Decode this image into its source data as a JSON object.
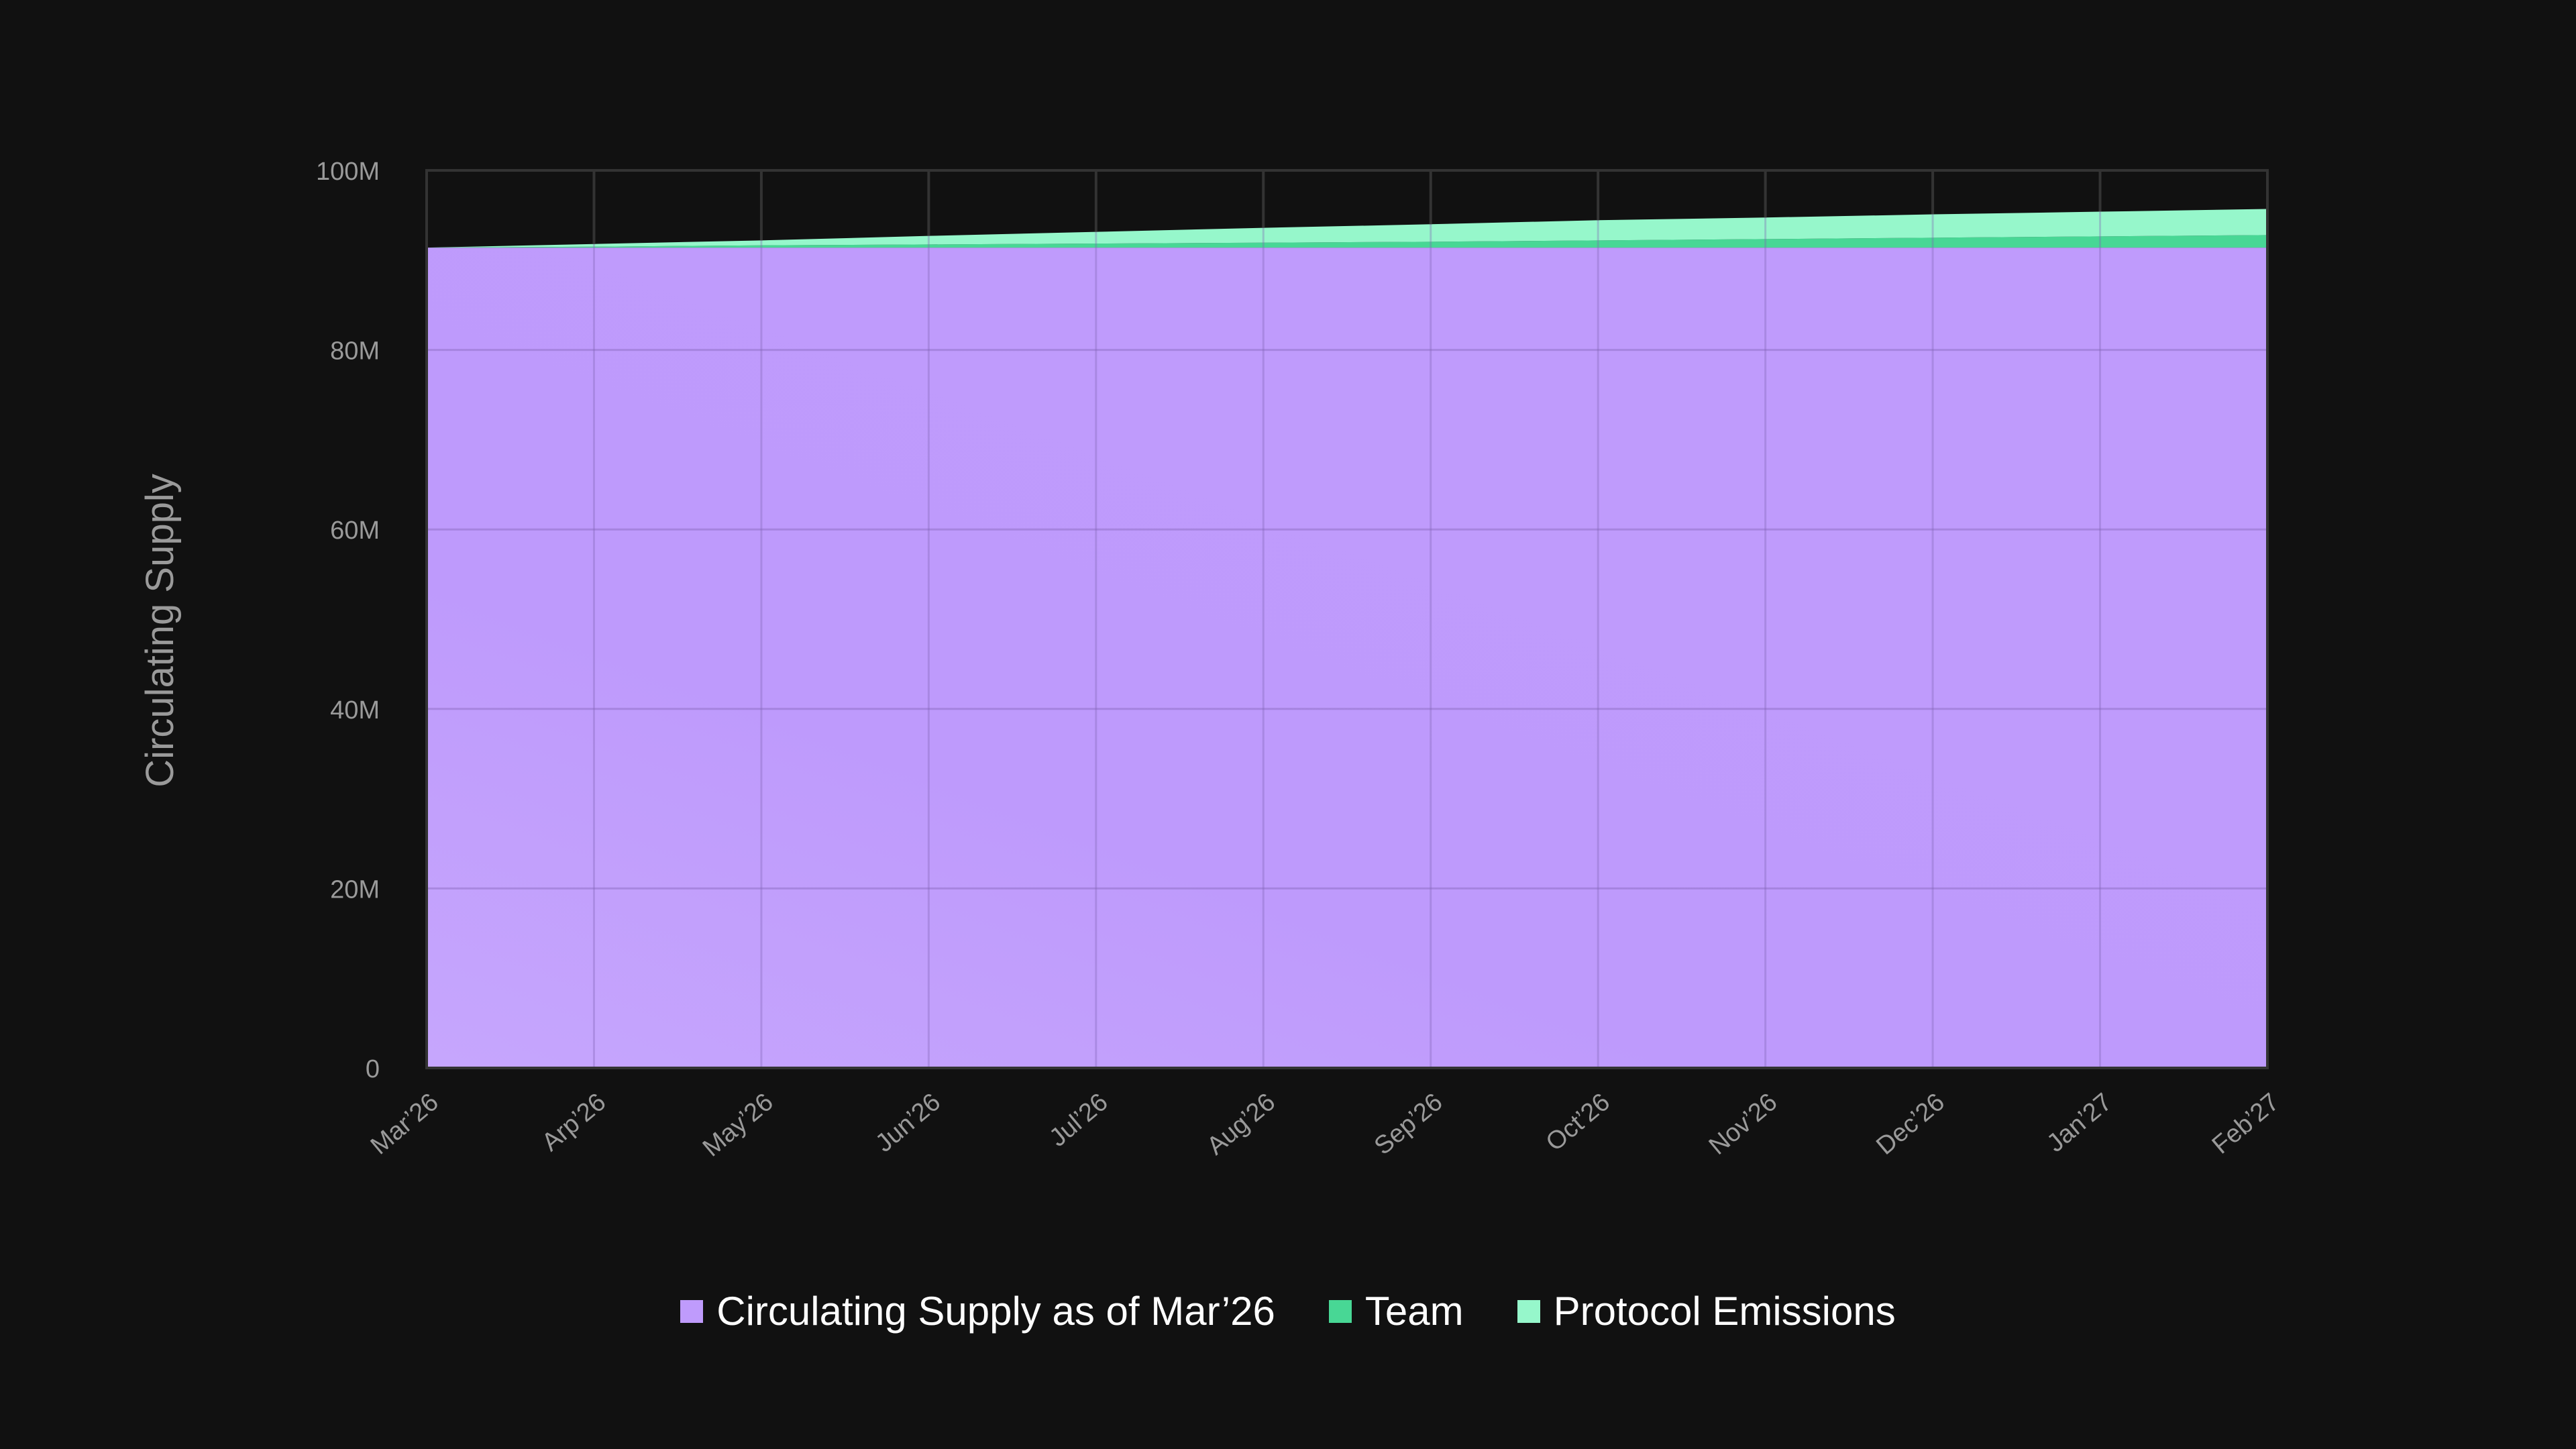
{
  "chart_data": {
    "type": "area",
    "stacked": true,
    "ylabel": "Circulating Supply",
    "xlabel": "",
    "ylim": [
      0,
      100000000
    ],
    "y_ticks": [
      "0",
      "20M",
      "40M",
      "60M",
      "80M",
      "100M"
    ],
    "y_tick_values": [
      0,
      20000000,
      40000000,
      60000000,
      80000000,
      100000000
    ],
    "categories": [
      "Mar’26",
      "Arp’26",
      "May’26",
      "Jun’26",
      "Jul’26",
      "Aug’26",
      "Sep’26",
      "Oct’26",
      "Nov’26",
      "Dec’26",
      "Jan’27",
      "Feb’27"
    ],
    "grid": true,
    "legend_position": "bottom",
    "series": [
      {
        "name": "Circulating Supply as of Mar’26",
        "color": "#BF9BFC",
        "values": [
          91400000,
          91400000,
          91400000,
          91400000,
          91400000,
          91400000,
          91400000,
          91400000,
          91400000,
          91400000,
          91400000,
          91400000
        ]
      },
      {
        "name": "Team",
        "color": "#48D795",
        "values": [
          0,
          100000,
          250000,
          350000,
          450000,
          550000,
          650000,
          800000,
          950000,
          1100000,
          1250000,
          1400000
        ]
      },
      {
        "name": "Protocol Emissions",
        "color": "#96F7CB",
        "values": [
          0,
          300000,
          550000,
          950000,
          1300000,
          1650000,
          1950000,
          2250000,
          2400000,
          2600000,
          2750000,
          2900000
        ]
      }
    ]
  }
}
